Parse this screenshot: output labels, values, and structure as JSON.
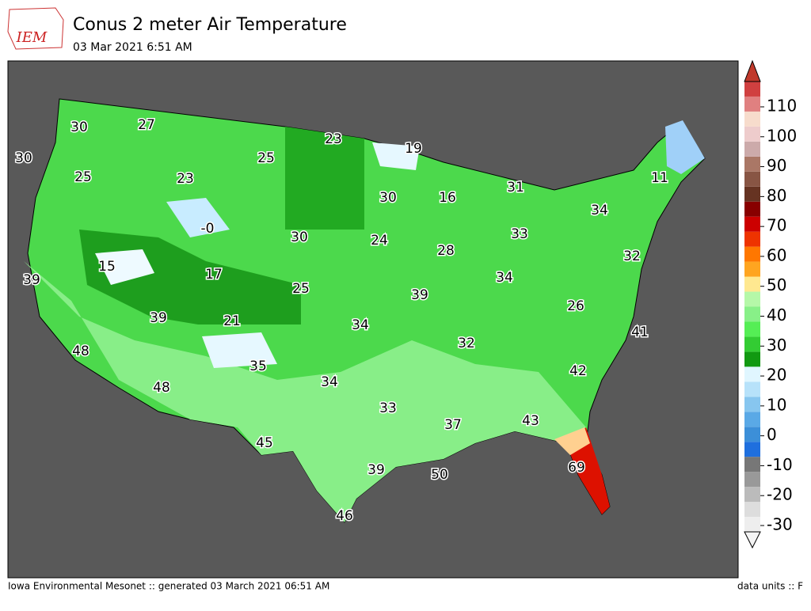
{
  "header": {
    "title": "Conus 2 meter Air Temperature",
    "subtitle": "03 Mar 2021 6:51 AM",
    "logo": "IEM"
  },
  "map": {
    "labels": [
      "30",
      "27",
      "23",
      "19",
      "25",
      "25",
      "23",
      "-0",
      "30",
      "16",
      "31",
      "11",
      "34",
      "15",
      "17",
      "30",
      "24",
      "28",
      "33",
      "39",
      "34",
      "32",
      "39",
      "25",
      "39",
      "34",
      "26",
      "30",
      "21",
      "48",
      "41",
      "32",
      "35",
      "34",
      "42",
      "48",
      "33",
      "37",
      "43",
      "45",
      "69",
      "39",
      "50",
      "46"
    ]
  },
  "colorbar": {
    "ticks": [
      "-30",
      "-20",
      "-10",
      "0",
      "10",
      "20",
      "30",
      "40",
      "50",
      "60",
      "70",
      "80",
      "90",
      "100",
      "110"
    ]
  },
  "footer": {
    "left": "Iowa Environmental Mesonet :: generated 03 March 2021 06:51 AM",
    "right": "data units :: F"
  }
}
